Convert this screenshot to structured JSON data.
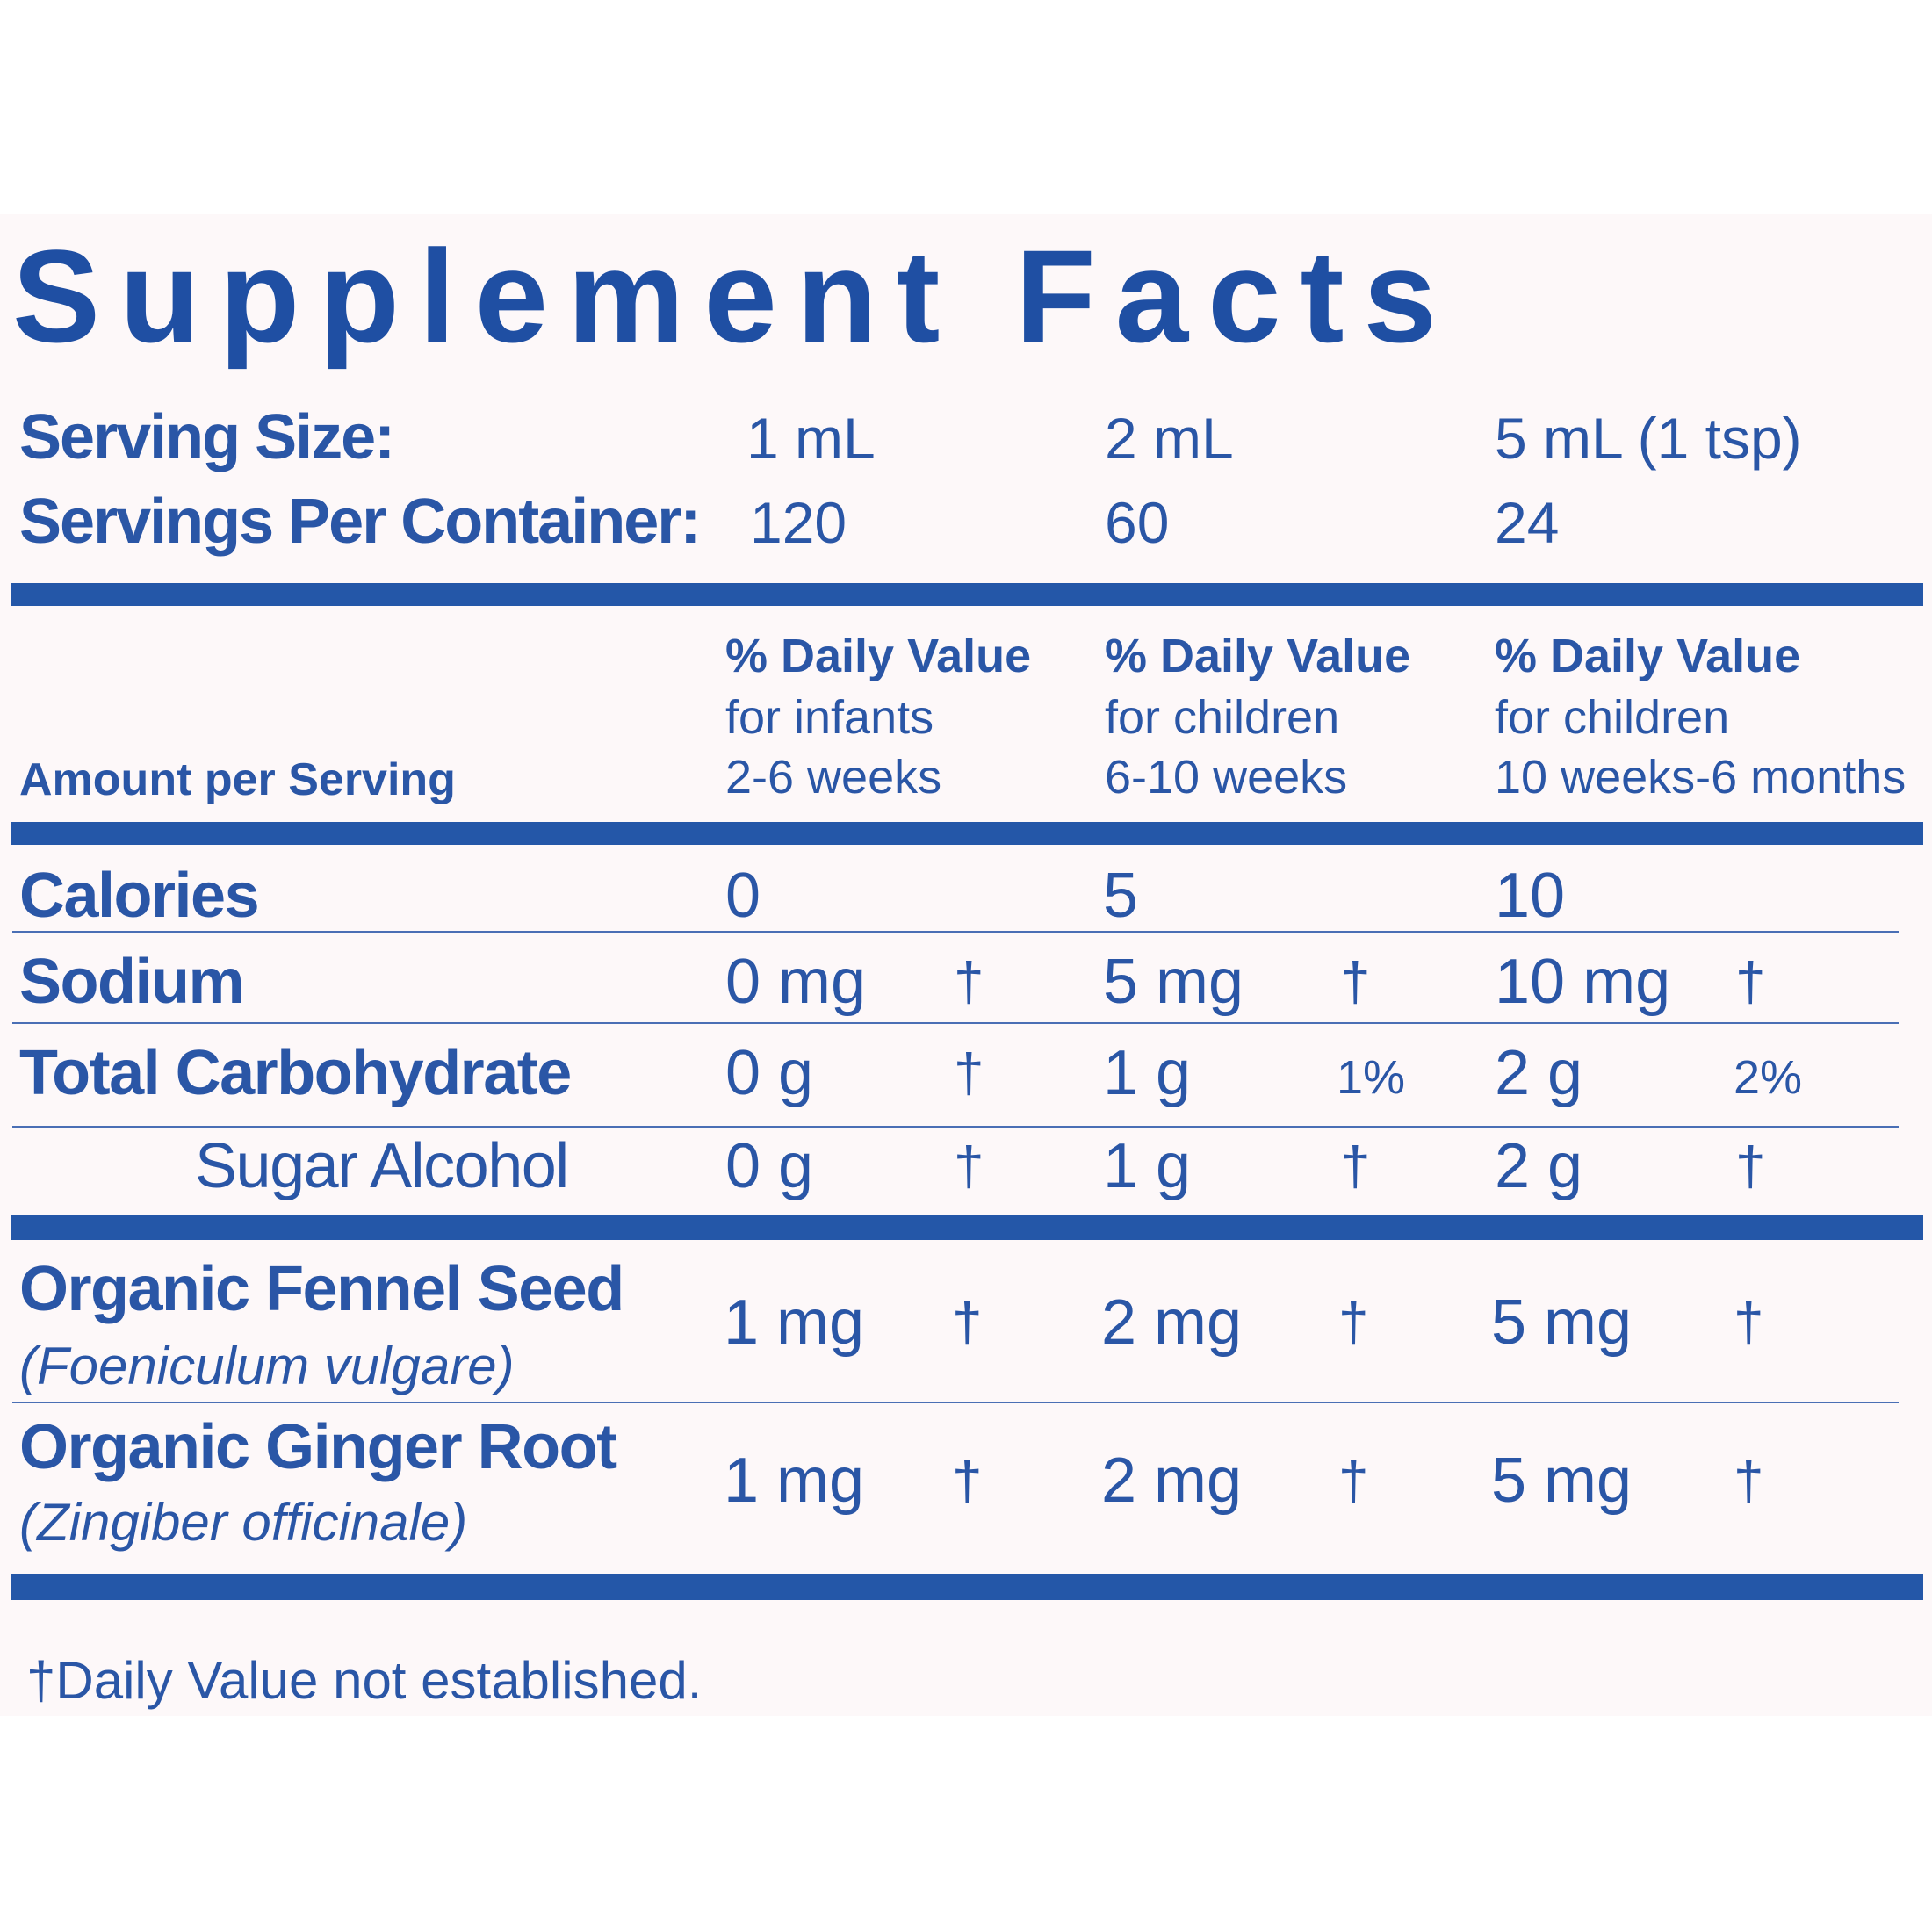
{
  "title": "Supplement Facts",
  "serving_size": {
    "label": "Serving Size:",
    "values": [
      "1 mL",
      "2 mL",
      "5 mL (1 tsp)"
    ]
  },
  "servings_per_container": {
    "label": "Servings Per Container:",
    "values": [
      "120",
      "60",
      "24"
    ]
  },
  "header": {
    "amount_label": "Amount per Serving",
    "columns": [
      {
        "line1": "% Daily Value",
        "line2": "for infants",
        "line3": "2-6 weeks"
      },
      {
        "line1": "% Daily Value",
        "line2": "for children",
        "line3": "6-10 weeks"
      },
      {
        "line1": "% Daily Value",
        "line2": "for children",
        "line3": "10 weeks-6 months"
      }
    ]
  },
  "nutrients": {
    "calories": {
      "label": "Calories",
      "values": [
        "0",
        "5",
        "10"
      ]
    },
    "sodium": {
      "label": "Sodium",
      "values": [
        "0 mg",
        "5 mg",
        "10 mg"
      ],
      "dv": [
        "†",
        "†",
        "†"
      ]
    },
    "carbohydrate": {
      "label": "Total Carbohydrate",
      "values": [
        "0 g",
        "1 g",
        "2 g"
      ],
      "dv": [
        "†",
        "1%",
        "2%"
      ]
    },
    "sugar_alcohol": {
      "label": "Sugar Alcohol",
      "values": [
        "0 g",
        "1 g",
        "2 g"
      ],
      "dv": [
        "†",
        "†",
        "†"
      ]
    }
  },
  "herbs": {
    "fennel": {
      "label": "Organic Fennel Seed",
      "latin": "Foeniculum vulgare",
      "open_paren": "(",
      "close_paren": ")",
      "values": [
        "1 mg",
        "2 mg",
        "5 mg"
      ],
      "dv": [
        "†",
        "†",
        "†"
      ]
    },
    "ginger": {
      "label": "Organic Ginger Root",
      "latin": "Zingiber officinale",
      "open_paren": "(",
      "close_paren": ")",
      "values": [
        "1 mg",
        "2 mg",
        "5 mg"
      ],
      "dv": [
        "†",
        "†",
        "†"
      ]
    }
  },
  "footnote": "†Daily Value not established.",
  "colors": {
    "ink": "#2a56a6",
    "rule": "#2457a8",
    "paper": "#fdf8f9"
  }
}
